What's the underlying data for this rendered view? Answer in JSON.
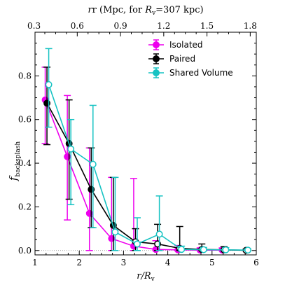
{
  "chart_data": {
    "type": "line",
    "xlabel": "r/R",
    "xlabel_sub": "v",
    "ylabel": "f",
    "ylabel_sub": "backsplash",
    "top_label_prefix": "r (Mpc, for ",
    "top_label_R": "R",
    "top_label_sub": "v",
    "top_label_suffix": "=307 kpc)",
    "xlim": [
      1,
      6
    ],
    "ylim": [
      -0.02,
      1.0
    ],
    "xticks": [
      1,
      2,
      3,
      4,
      5,
      6
    ],
    "yticks": [
      0.0,
      0.2,
      0.4,
      0.6,
      0.8
    ],
    "top_ticks": [
      0.3,
      0.6,
      0.9,
      1.2,
      1.5,
      1.8
    ],
    "top_scale_kpc": 307,
    "grid": false,
    "legend_position": "top-right",
    "reference_line_y": 0,
    "series": [
      {
        "name": "Isolated",
        "color": "#ee00ee",
        "x": [
          1.23,
          1.73,
          2.23,
          2.73,
          3.23,
          3.73,
          4.23,
          4.73,
          5.23
        ],
        "y": [
          0.69,
          0.43,
          0.17,
          0.055,
          0.02,
          0.005,
          0.003,
          0.002,
          0.002
        ],
        "err_low": [
          0.2,
          0.29,
          0.17,
          0.055,
          0.02,
          0.005,
          0.003,
          0.002,
          0.002
        ],
        "err_high": [
          0.15,
          0.28,
          0.3,
          0.28,
          0.31,
          0.04,
          0.02,
          0.01,
          0.01
        ],
        "marker": "filled"
      },
      {
        "name": "Paired",
        "color": "#000000",
        "x": [
          1.27,
          1.77,
          2.27,
          2.77,
          3.27,
          3.77,
          4.27,
          4.77,
          5.27,
          5.77
        ],
        "y": [
          0.675,
          0.49,
          0.28,
          0.115,
          0.04,
          0.03,
          0.01,
          0.005,
          0.003,
          0.001
        ],
        "err_low": [
          0.19,
          0.255,
          0.175,
          0.115,
          0.04,
          0.03,
          0.01,
          0.005,
          0.003,
          0.001
        ],
        "err_high": [
          0.165,
          0.2,
          0.19,
          0.22,
          0.06,
          0.09,
          0.1,
          0.025,
          0.015,
          0.005
        ],
        "marker": "mixed"
      },
      {
        "name": "Shared Volume",
        "color": "#17c3c3",
        "x": [
          1.31,
          1.81,
          2.31,
          2.81,
          3.31,
          3.81,
          4.31,
          4.81,
          5.31,
          5.81
        ],
        "y": [
          0.76,
          0.465,
          0.395,
          0.085,
          0.03,
          0.075,
          0.005,
          0.004,
          0.003,
          0.002
        ],
        "err_low": [
          0.195,
          0.255,
          0.29,
          0.085,
          0.03,
          0.075,
          0.005,
          0.004,
          0.003,
          0.002
        ],
        "err_high": [
          0.165,
          0.135,
          0.27,
          0.25,
          0.12,
          0.175,
          0.015,
          0.01,
          0.01,
          0.005
        ],
        "marker": "open"
      }
    ]
  }
}
